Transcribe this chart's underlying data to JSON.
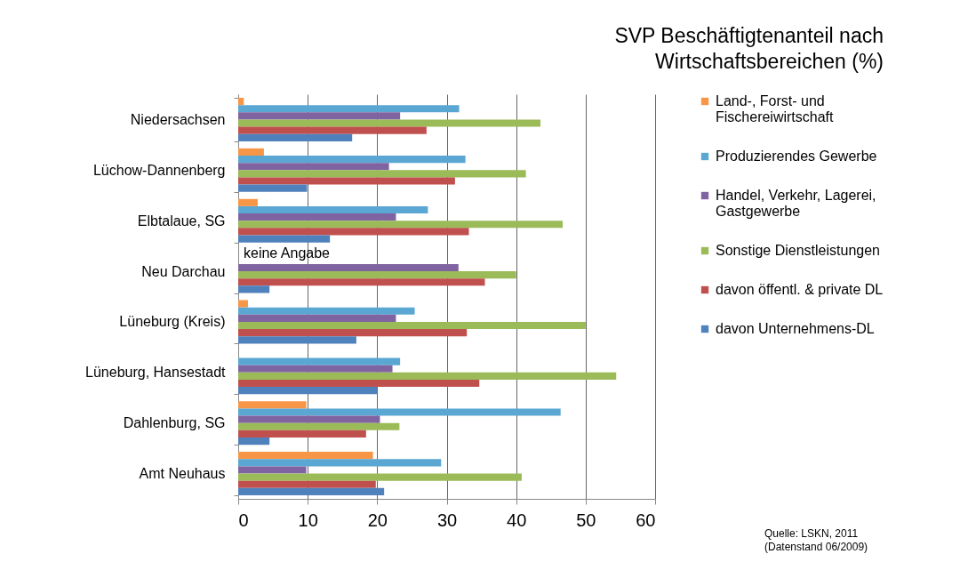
{
  "chart_data": {
    "type": "bar",
    "orientation": "horizontal",
    "title": "SVP Beschäftigtenanteil nach Wirtschaftsbereichen (%)",
    "categories": [
      "Niedersachsen",
      "Lüchow-Dannenberg",
      "Elbtalaue, SG",
      "Neu Darchau",
      "Lüneburg (Kreis)",
      "Lüneburg, Hansestadt",
      "Dahlenburg, SG",
      "Amt Neuhaus"
    ],
    "series": [
      {
        "name": "Land-, Forst- und Fischereiwirtschaft",
        "color": "#f79646",
        "values": [
          0.8,
          3.7,
          2.8,
          null,
          1.4,
          null,
          9.8,
          19.4
        ]
      },
      {
        "name": "Produzierendes Gewerbe",
        "color": "#5ba7d3",
        "values": [
          31.8,
          32.7,
          27.3,
          null,
          25.4,
          23.3,
          46.4,
          29.2
        ]
      },
      {
        "name": "Handel, Verkehr, Lagerei, Gastgewerbe",
        "color": "#8064a2",
        "values": [
          23.3,
          21.7,
          22.7,
          31.7,
          22.7,
          22.2,
          20.4,
          9.8
        ]
      },
      {
        "name": "Sonstige Dienstleistungen",
        "color": "#9bbb59",
        "values": [
          43.5,
          41.4,
          46.7,
          40.0,
          50.0,
          54.4,
          23.2,
          40.8
        ]
      },
      {
        "name": "davon öffentl. & private DL",
        "color": "#c0504d",
        "values": [
          27.1,
          31.2,
          33.2,
          35.5,
          32.9,
          34.7,
          18.4,
          19.8
        ]
      },
      {
        "name": "davon Unternehmens-DL",
        "color": "#4f81bd",
        "values": [
          16.4,
          9.9,
          13.2,
          4.5,
          17.0,
          20.0,
          4.5,
          21.0
        ]
      }
    ],
    "xlim": [
      0,
      60
    ],
    "xticks": [
      0,
      10,
      20,
      30,
      40,
      50,
      60
    ],
    "grid": "x",
    "legend": "right",
    "annotations": [
      {
        "text": "keine Angabe",
        "x": 0,
        "y": "Neu Darchau"
      },
      "Quelle: LSKN, 2011 (Datenstand 06/2009)"
    ]
  }
}
